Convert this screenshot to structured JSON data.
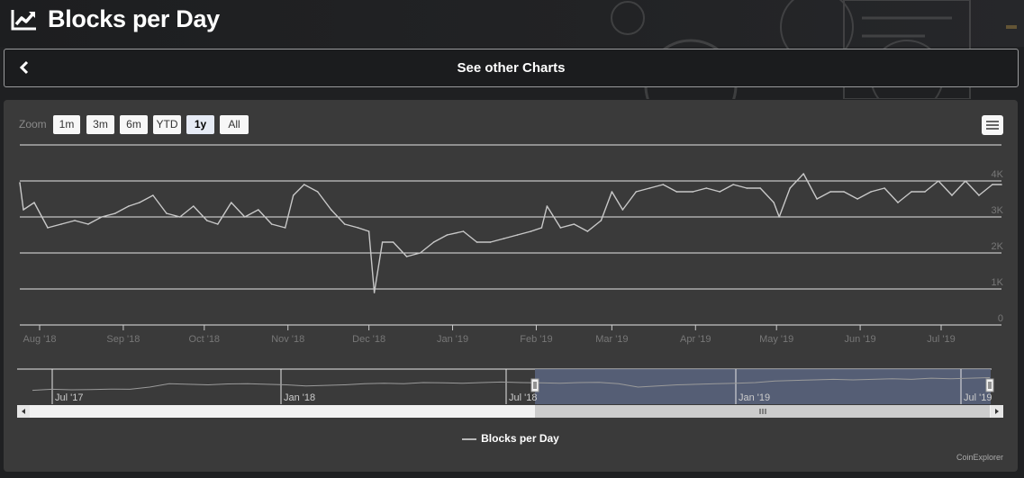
{
  "header": {
    "title": "Blocks per Day"
  },
  "nav": {
    "label": "See other Charts"
  },
  "zoom": {
    "label": "Zoom",
    "buttons": [
      "1m",
      "3m",
      "6m",
      "YTD",
      "1y",
      "All"
    ],
    "selected": "1y"
  },
  "colors": {
    "line": "#c8c8c8",
    "navigator_mask": "#5a6580",
    "panel": "#3a3a3a"
  },
  "legend": {
    "series_name": "Blocks per Day"
  },
  "credits": "CoinExplorer",
  "chart_data": {
    "type": "line",
    "title": "",
    "y_ticks": [
      "0",
      "1K",
      "2K",
      "3K",
      "4K"
    ],
    "ylim": [
      0,
      4000
    ],
    "x_ticks": [
      "Aug '18",
      "Sep '18",
      "Oct '18",
      "Nov '18",
      "Dec '18",
      "Jan '19",
      "Feb '19",
      "Mar '19",
      "Apr '19",
      "May '19",
      "Jun '19",
      "Jul '19"
    ],
    "series": [
      {
        "name": "Blocks per Day",
        "x": [
          "2018-07-23",
          "2018-07-26",
          "2018-07-30",
          "2018-08-04",
          "2018-08-09",
          "2018-08-14",
          "2018-08-19",
          "2018-08-24",
          "2018-08-29",
          "2018-09-03",
          "2018-09-07",
          "2018-09-12",
          "2018-09-17",
          "2018-09-22",
          "2018-09-27",
          "2018-10-02",
          "2018-10-06",
          "2018-10-11",
          "2018-10-16",
          "2018-10-21",
          "2018-10-26",
          "2018-10-31",
          "2018-11-03",
          "2018-11-07",
          "2018-11-12",
          "2018-11-17",
          "2018-11-22",
          "2018-11-27",
          "2018-12-01",
          "2018-12-03",
          "2018-12-06",
          "2018-12-10",
          "2018-12-15",
          "2018-12-20",
          "2018-12-25",
          "2018-12-30",
          "2019-01-05",
          "2019-01-10",
          "2019-01-15",
          "2019-01-20",
          "2019-01-25",
          "2019-01-30",
          "2019-02-03",
          "2019-02-05",
          "2019-02-10",
          "2019-02-15",
          "2019-02-20",
          "2019-02-25",
          "2019-03-01",
          "2019-03-05",
          "2019-03-10",
          "2019-03-15",
          "2019-03-20",
          "2019-03-25",
          "2019-03-31",
          "2019-04-05",
          "2019-04-10",
          "2019-04-15",
          "2019-04-20",
          "2019-04-25",
          "2019-04-30",
          "2019-05-02",
          "2019-05-06",
          "2019-05-11",
          "2019-05-16",
          "2019-05-21",
          "2019-05-26",
          "2019-05-31",
          "2019-06-05",
          "2019-06-10",
          "2019-06-15",
          "2019-06-20",
          "2019-06-25",
          "2019-06-30",
          "2019-07-05",
          "2019-07-10",
          "2019-07-15",
          "2019-07-20",
          "2019-07-24"
        ],
        "values": [
          3950,
          3200,
          3400,
          2700,
          2800,
          2900,
          2800,
          3000,
          3100,
          3300,
          3400,
          3600,
          3100,
          3000,
          3300,
          2900,
          2800,
          3400,
          3000,
          3200,
          2800,
          2700,
          3600,
          3900,
          3700,
          3200,
          2800,
          2700,
          2600,
          900,
          2300,
          2300,
          1900,
          2000,
          2300,
          2500,
          2600,
          2300,
          2300,
          2400,
          2500,
          2600,
          2700,
          3300,
          2700,
          2800,
          2600,
          2900,
          3700,
          3200,
          3700,
          3800,
          3900,
          3700,
          3700,
          3800,
          3700,
          3900,
          3800,
          3800,
          3400,
          3000,
          3800,
          4200,
          3500,
          3700,
          3700,
          3500,
          3700,
          3800,
          3400,
          3700,
          3700,
          4000,
          3600,
          4000,
          3600,
          3900,
          3900
        ]
      }
    ],
    "navigator": {
      "x_ticks": [
        "Jul '17",
        "Jan '18",
        "Jul '18",
        "Jan '19",
        "Jul '19"
      ],
      "selected_range": [
        "Jul '18",
        "Jul '19"
      ]
    },
    "grid": true,
    "legend_position": "bottom-center"
  }
}
